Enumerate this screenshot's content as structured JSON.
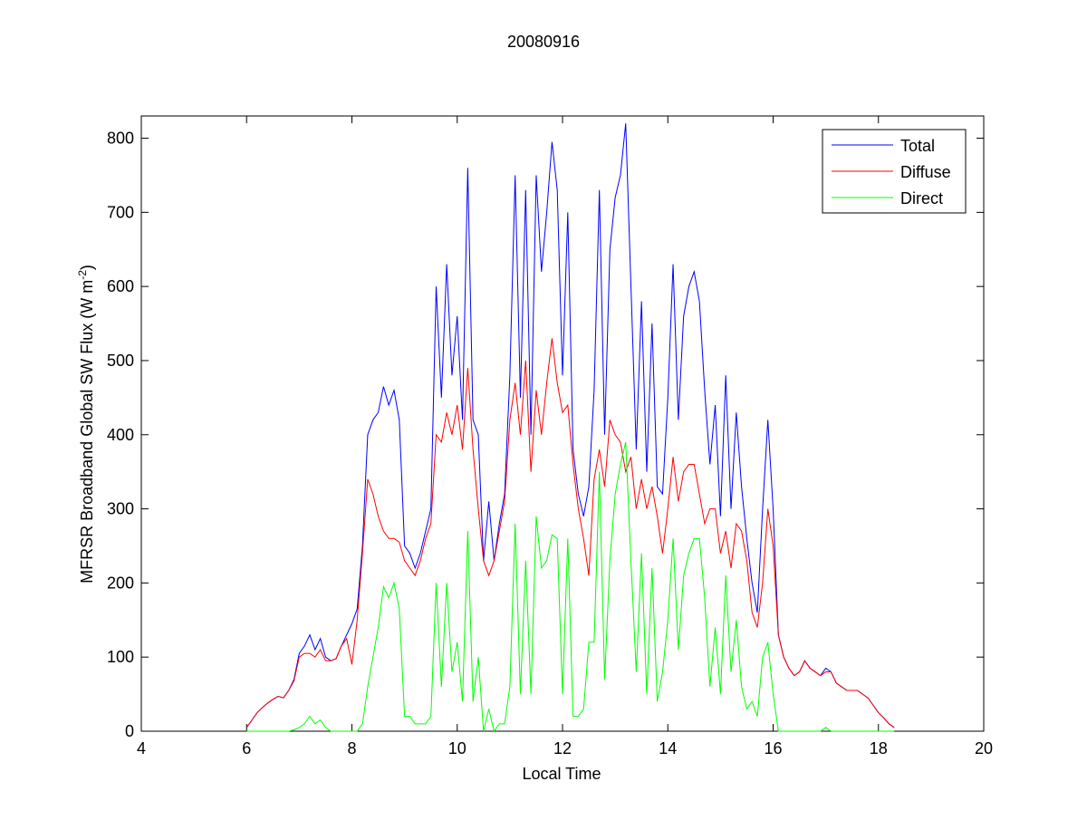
{
  "chart_data": {
    "type": "line",
    "title": "20080916",
    "xlabel": "Local Time",
    "ylabel": {
      "text": "MFRSR Broadband Global SW Flux (W m",
      "superscript": "-2",
      "suffix": ")"
    },
    "xlim": [
      4,
      20
    ],
    "xticks": [
      4,
      6,
      8,
      10,
      12,
      14,
      16,
      18,
      20
    ],
    "ylim": [
      0,
      830
    ],
    "yticks": [
      0,
      100,
      200,
      300,
      400,
      500,
      600,
      700,
      800
    ],
    "grid": false,
    "legend": "upper-right",
    "x": [
      6,
      6.1,
      6.2,
      6.3,
      6.4,
      6.5,
      6.6,
      6.7,
      6.8,
      6.9,
      7,
      7.1,
      7.2,
      7.3,
      7.4,
      7.5,
      7.6,
      7.7,
      7.8,
      7.9,
      8,
      8.1,
      8.2,
      8.3,
      8.4,
      8.5,
      8.6,
      8.7,
      8.8,
      8.9,
      9,
      9.1,
      9.2,
      9.3,
      9.4,
      9.5,
      9.6,
      9.7,
      9.8,
      9.9,
      10,
      10.1,
      10.2,
      10.3,
      10.4,
      10.5,
      10.6,
      10.7,
      10.8,
      10.9,
      11,
      11.1,
      11.2,
      11.3,
      11.4,
      11.5,
      11.6,
      11.7,
      11.8,
      11.9,
      12,
      12.1,
      12.2,
      12.3,
      12.4,
      12.5,
      12.6,
      12.7,
      12.8,
      12.9,
      13,
      13.1,
      13.2,
      13.3,
      13.4,
      13.5,
      13.6,
      13.7,
      13.8,
      13.9,
      14,
      14.1,
      14.2,
      14.3,
      14.4,
      14.5,
      14.6,
      14.7,
      14.8,
      14.9,
      15,
      15.1,
      15.2,
      15.3,
      15.4,
      15.5,
      15.6,
      15.7,
      15.8,
      15.9,
      16,
      16.1,
      16.2,
      16.3,
      16.4,
      16.5,
      16.6,
      16.7,
      16.8,
      16.9,
      17,
      17.1,
      17.2,
      17.3,
      17.4,
      17.5,
      17.6,
      17.7,
      17.8,
      17.9,
      18,
      18.1,
      18.2,
      18.3
    ],
    "series": [
      {
        "name": "Total",
        "color": "#0000ff",
        "values": [
          5,
          15,
          25,
          32,
          38,
          43,
          47,
          45,
          55,
          70,
          105,
          115,
          130,
          110,
          125,
          100,
          95,
          98,
          115,
          130,
          145,
          165,
          250,
          400,
          420,
          430,
          465,
          440,
          460,
          420,
          250,
          240,
          220,
          240,
          270,
          300,
          600,
          450,
          630,
          480,
          560,
          420,
          760,
          420,
          400,
          230,
          310,
          230,
          280,
          320,
          480,
          750,
          450,
          730,
          400,
          750,
          620,
          700,
          795,
          730,
          480,
          700,
          380,
          320,
          290,
          330,
          460,
          730,
          400,
          650,
          720,
          750,
          820,
          600,
          380,
          580,
          350,
          550,
          330,
          320,
          450,
          630,
          420,
          560,
          600,
          620,
          580,
          460,
          360,
          440,
          290,
          480,
          300,
          430,
          330,
          260,
          200,
          160,
          300,
          420,
          300,
          130,
          100,
          85,
          75,
          80,
          95,
          85,
          80,
          75,
          85,
          80,
          65,
          60,
          55,
          55,
          55,
          50,
          45,
          35,
          25,
          18,
          10,
          5
        ]
      },
      {
        "name": "Diffuse",
        "color": "#ff0000",
        "values": [
          5,
          15,
          25,
          32,
          38,
          43,
          47,
          45,
          55,
          68,
          100,
          105,
          105,
          100,
          110,
          95,
          95,
          98,
          115,
          125,
          90,
          150,
          240,
          340,
          320,
          290,
          270,
          260,
          260,
          255,
          230,
          220,
          210,
          230,
          260,
          280,
          400,
          390,
          430,
          400,
          440,
          380,
          490,
          380,
          300,
          230,
          210,
          230,
          270,
          310,
          420,
          470,
          400,
          500,
          350,
          460,
          400,
          470,
          530,
          470,
          430,
          440,
          360,
          300,
          260,
          210,
          340,
          380,
          330,
          420,
          400,
          390,
          350,
          370,
          300,
          340,
          300,
          330,
          290,
          240,
          300,
          370,
          310,
          350,
          360,
          360,
          320,
          280,
          300,
          300,
          240,
          270,
          220,
          280,
          270,
          230,
          160,
          140,
          200,
          300,
          250,
          130,
          100,
          85,
          75,
          80,
          95,
          85,
          80,
          75,
          80,
          80,
          65,
          60,
          55,
          55,
          55,
          50,
          45,
          35,
          25,
          18,
          10,
          5
        ]
      },
      {
        "name": "Direct",
        "color": "#00ff00",
        "values": [
          0,
          0,
          0,
          0,
          0,
          0,
          0,
          0,
          0,
          2,
          5,
          10,
          20,
          10,
          15,
          5,
          0,
          0,
          0,
          0,
          0,
          0,
          10,
          60,
          100,
          140,
          195,
          180,
          200,
          165,
          20,
          20,
          10,
          10,
          10,
          20,
          200,
          60,
          200,
          80,
          120,
          40,
          270,
          40,
          100,
          0,
          30,
          0,
          10,
          10,
          60,
          280,
          50,
          230,
          50,
          290,
          220,
          230,
          265,
          260,
          50,
          260,
          20,
          20,
          30,
          120,
          120,
          350,
          70,
          230,
          320,
          360,
          390,
          230,
          80,
          240,
          50,
          220,
          40,
          80,
          150,
          260,
          110,
          210,
          240,
          260,
          260,
          180,
          60,
          140,
          50,
          210,
          80,
          150,
          60,
          30,
          40,
          20,
          100,
          120,
          50,
          0,
          0,
          0,
          0,
          0,
          0,
          0,
          0,
          0,
          5,
          0,
          0,
          0,
          0,
          0,
          0,
          0,
          0,
          0,
          0,
          0,
          0,
          0
        ]
      }
    ]
  }
}
